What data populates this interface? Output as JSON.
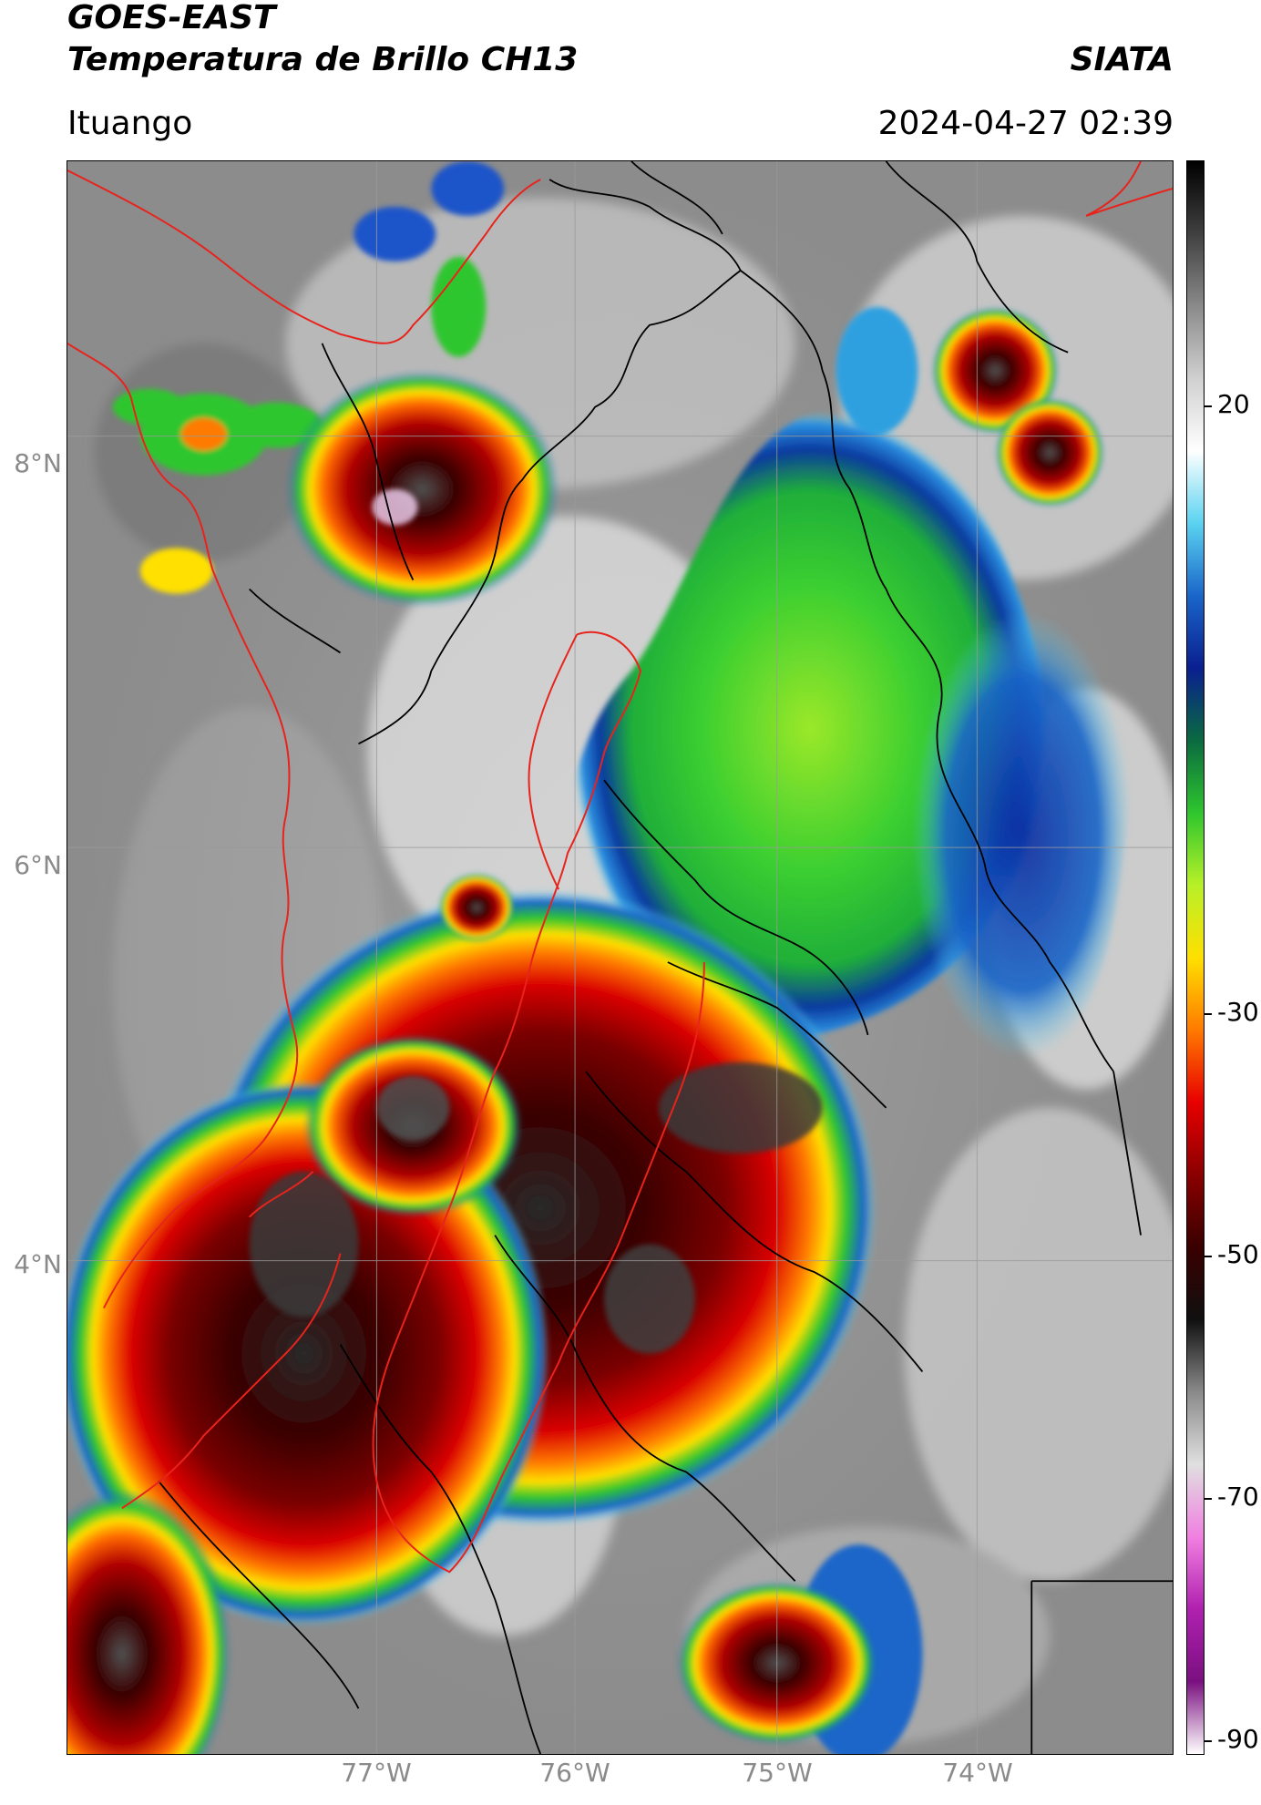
{
  "header": {
    "title_line1": "GOES-EAST",
    "title_line2": "Temperatura de Brillo CH13",
    "organization": "SIATA",
    "region": "Ituango",
    "datetime": "2024-04-27 02:39"
  },
  "map": {
    "lat_labels": [
      "8°N",
      "6°N",
      "4°N"
    ],
    "lon_labels": [
      "77°W",
      "76°W",
      "75°W",
      "74°W"
    ],
    "colors": {
      "boundary_red": "#e8231c",
      "boundary_black": "#000000",
      "grid": "#9a9a9a"
    }
  },
  "colorbar": {
    "tick_labels": [
      "20",
      "-30",
      "-50",
      "-70",
      "-90"
    ],
    "stops": [
      "#000000",
      "#404040",
      "#8a8a8a",
      "#d0d0d0",
      "#ffffff",
      "#5bd3f0",
      "#1a66c9",
      "#0a1f8f",
      "#0a6a40",
      "#2ec62e",
      "#b8f028",
      "#ffe000",
      "#ff7a00",
      "#e80000",
      "#8a0000",
      "#3a0000",
      "#101010",
      "#8a8a8a",
      "#e0e0e0",
      "#f080e0",
      "#b020b0",
      "#7a1080",
      "#ffffff"
    ]
  }
}
